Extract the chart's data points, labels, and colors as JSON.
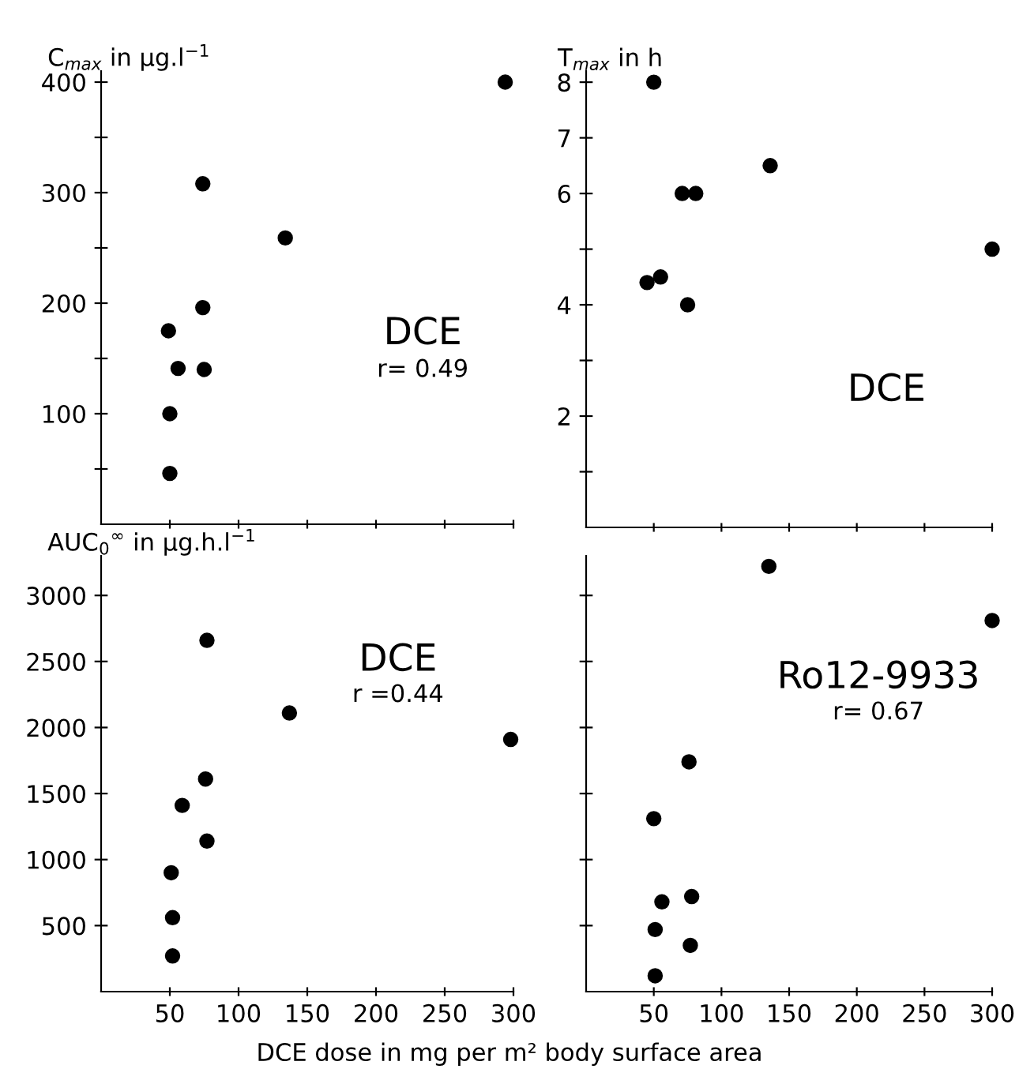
{
  "chart_data": [
    {
      "type": "scatter",
      "ylabel": "C$_{max}$ in µg.l$^{−1}$",
      "annotations": [
        "DCE",
        "r= 0.49"
      ],
      "marker": "circle",
      "grid": false,
      "tick_labels": "y",
      "xlim": [
        0,
        300
      ],
      "xticks": [
        {
          "value": 50,
          "label": null
        },
        {
          "value": 100,
          "label": null
        },
        {
          "value": 150,
          "label": null
        },
        {
          "value": 200,
          "label": null
        },
        {
          "value": 250,
          "label": null
        },
        {
          "value": 300,
          "label": null
        }
      ],
      "ylim": [
        0,
        410
      ],
      "yticks": [
        {
          "value": 50,
          "label": null
        },
        100,
        {
          "value": 150,
          "label": null
        },
        200,
        {
          "value": 250,
          "label": null
        },
        300,
        {
          "value": 350,
          "label": null
        },
        400
      ],
      "series": [
        {
          "color": "#000000",
          "x": [
            294,
            74,
            134,
            74,
            49,
            56,
            75,
            50,
            50
          ],
          "values": [
            400,
            308,
            259,
            196,
            175,
            141,
            140,
            100,
            46
          ]
        }
      ]
    },
    {
      "type": "scatter",
      "ylabel": "T$_{max}$ in h",
      "annotations": [
        "DCE"
      ],
      "marker": "circle",
      "grid": false,
      "tick_labels": "y",
      "xlim": [
        0,
        300
      ],
      "xticks": [
        {
          "value": 50,
          "label": null
        },
        {
          "value": 100,
          "label": null
        },
        {
          "value": 150,
          "label": null
        },
        {
          "value": 200,
          "label": null
        },
        {
          "value": 250,
          "label": null
        },
        {
          "value": 300,
          "label": null
        }
      ],
      "ylim": [
        0,
        8.2
      ],
      "yticks": [
        {
          "value": 1,
          "label": null
        },
        2,
        {
          "value": 3,
          "label": null
        },
        4,
        {
          "value": 5,
          "label": null
        },
        6,
        7,
        8
      ],
      "series": [
        {
          "color": "#000000",
          "x": [
            50,
            136,
            71,
            81,
            300,
            45,
            55,
            75
          ],
          "values": [
            8.0,
            6.5,
            6.0,
            6.0,
            5.0,
            4.4,
            4.5,
            4.0
          ]
        }
      ]
    },
    {
      "type": "scatter",
      "ylabel": "AUC$_{0}$$^{∞}$ in µg.h.l$^{−1}$",
      "xlabel": "DCE dose in mg per m² body surface area",
      "annotations": [
        "DCE",
        "r =0.44"
      ],
      "marker": "circle",
      "grid": false,
      "xlim": [
        0,
        300
      ],
      "xticks": [
        50,
        100,
        150,
        200,
        250,
        300
      ],
      "ylim": [
        0,
        3300
      ],
      "yticks": [
        500,
        1000,
        1500,
        2000,
        2500,
        3000
      ],
      "series": [
        {
          "color": "#000000",
          "x": [
            77,
            137,
            298,
            76,
            59,
            77,
            51,
            52,
            52
          ],
          "values": [
            2660,
            2110,
            1910,
            1610,
            1410,
            1140,
            900,
            560,
            270
          ]
        }
      ]
    },
    {
      "type": "scatter",
      "annotations": [
        "Ro12-9933",
        "r= 0.67"
      ],
      "marker": "circle",
      "grid": false,
      "tick_labels": "x",
      "xlim": [
        0,
        300
      ],
      "xticks": [
        50,
        100,
        150,
        200,
        250,
        300
      ],
      "ylim": [
        0,
        3300
      ],
      "yticks": [
        {
          "value": 500,
          "label": null
        },
        {
          "value": 1000,
          "label": null
        },
        {
          "value": 1500,
          "label": null
        },
        {
          "value": 2000,
          "label": null
        },
        {
          "value": 2500,
          "label": null
        },
        {
          "value": 3000,
          "label": null
        }
      ],
      "series": [
        {
          "color": "#000000",
          "x": [
            135,
            300,
            76,
            50,
            78,
            56,
            51,
            77,
            51
          ],
          "values": [
            3220,
            2810,
            1740,
            1310,
            720,
            680,
            470,
            350,
            120
          ]
        }
      ]
    }
  ]
}
